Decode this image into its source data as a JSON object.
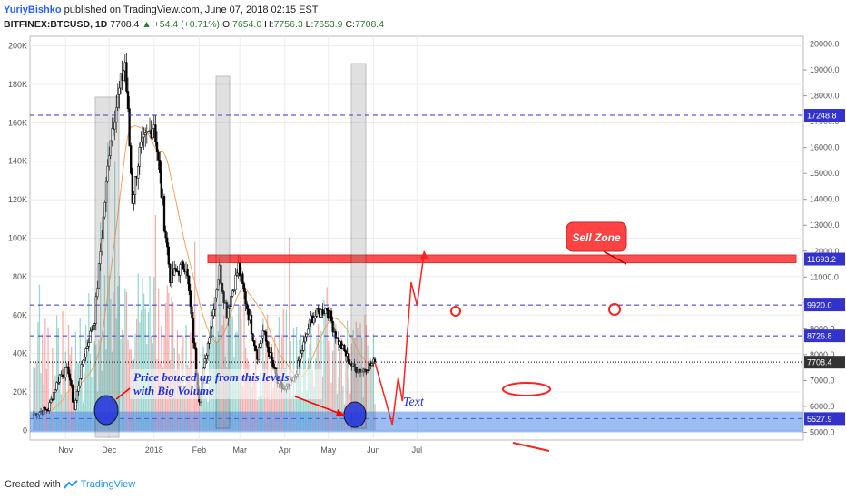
{
  "header": {
    "author": "YuriyBishko",
    "published": "published on TradingView.com, June 07, 2018 02:15 EST",
    "symbol": "BITFINEX:BTCUSD, 1D",
    "last": "7708.4",
    "change": "+54.4 (+0.71%)",
    "open": "7654.0",
    "high": "7756.3",
    "low": "7653.9",
    "close": "7708.4",
    "o_label": "O:",
    "h_label": "H:",
    "l_label": "L:",
    "c_label": "C:"
  },
  "footer": {
    "created_with": "Created with",
    "brand": "TradingView"
  },
  "colors": {
    "up": "#26a69a",
    "down": "#ef5350",
    "level": "#3333cc",
    "annot": "#ff2222",
    "zone": "#4a86e8"
  },
  "chart_data": {
    "type": "candlestick",
    "title": "BITFINEX:BTCUSD, 1D",
    "x_ticks": [
      "Nov",
      "Dec",
      "2018",
      "Feb",
      "Mar",
      "Apr",
      "May",
      "Jun",
      "Jul"
    ],
    "price_ticks": [
      5000,
      6000,
      7000,
      8000,
      9000,
      10000,
      11000,
      12000,
      13000,
      14000,
      15000,
      16000,
      17000,
      18000,
      19000,
      20000
    ],
    "price_tick_labels": [
      "5000.0",
      "6000.0",
      "7000.0",
      "8000.0",
      "9000.0",
      "10000.0",
      "11000.0",
      "12000.0",
      "13000.0",
      "14000.0",
      "15000.0",
      "16000.0",
      "17000.0",
      "18000.0",
      "19000.0",
      "20000.0"
    ],
    "volume_ticks": [
      0,
      20000,
      40000,
      60000,
      80000,
      100000,
      120000,
      140000,
      160000,
      180000,
      200000
    ],
    "volume_tick_labels": [
      "0",
      "20K",
      "40K",
      "60K",
      "80K",
      "100K",
      "120K",
      "140K",
      "160K",
      "180K",
      "200K"
    ],
    "price_range": [
      4700,
      20300
    ],
    "volume_range": [
      -5000,
      205000
    ],
    "levels": [
      {
        "value": 17248.8,
        "label": "17248.8"
      },
      {
        "value": 11693.2,
        "label": "11693.2"
      },
      {
        "value": 9920.0,
        "label": "9920.0"
      },
      {
        "value": 8726.8,
        "label": "8726.8"
      },
      {
        "value": 7708.4,
        "label": "7708.4",
        "current": true
      },
      {
        "value": 5527.9,
        "label": "5527.9"
      }
    ],
    "keypoints": [
      {
        "date": "2017-10-15",
        "price": 5700
      },
      {
        "date": "2017-10-25",
        "price": 5900
      },
      {
        "date": "2017-11-02",
        "price": 7200
      },
      {
        "date": "2017-11-08",
        "price": 7400
      },
      {
        "date": "2017-11-12",
        "price": 5900
      },
      {
        "date": "2017-11-18",
        "price": 7800
      },
      {
        "date": "2017-11-26",
        "price": 9400
      },
      {
        "date": "2017-12-07",
        "price": 16500
      },
      {
        "date": "2017-12-17",
        "price": 19300
      },
      {
        "date": "2017-12-22",
        "price": 14000
      },
      {
        "date": "2017-12-27",
        "price": 15800
      },
      {
        "date": "2018-01-06",
        "price": 17000
      },
      {
        "date": "2018-01-17",
        "price": 11000
      },
      {
        "date": "2018-01-28",
        "price": 11500
      },
      {
        "date": "2018-02-06",
        "price": 6300
      },
      {
        "date": "2018-02-20",
        "price": 11300
      },
      {
        "date": "2018-02-25",
        "price": 9600
      },
      {
        "date": "2018-03-05",
        "price": 11400
      },
      {
        "date": "2018-03-18",
        "price": 8000
      },
      {
        "date": "2018-03-22",
        "price": 8900
      },
      {
        "date": "2018-04-01",
        "price": 6900
      },
      {
        "date": "2018-04-06",
        "price": 6600
      },
      {
        "date": "2018-04-12",
        "price": 7000
      },
      {
        "date": "2018-04-24",
        "price": 9400
      },
      {
        "date": "2018-05-05",
        "price": 9800
      },
      {
        "date": "2018-05-12",
        "price": 8600
      },
      {
        "date": "2018-05-23",
        "price": 7500
      },
      {
        "date": "2018-05-29",
        "price": 7400
      },
      {
        "date": "2018-06-07",
        "price": 7708.4
      }
    ],
    "projection": [
      {
        "date": "2018-06-07",
        "price": 7708.4
      },
      {
        "date": "2018-06-19",
        "price": 5300
      },
      {
        "date": "2018-06-23",
        "price": 7100
      },
      {
        "date": "2018-06-26",
        "price": 6200
      },
      {
        "date": "2018-07-02",
        "price": 10800
      },
      {
        "date": "2018-07-06",
        "price": 9900
      },
      {
        "date": "2018-07-11",
        "price": 12000
      }
    ],
    "annotations": [
      {
        "text": "Price bouced up from this levels\nwith Big Volume"
      },
      {
        "text": "Sell Zone"
      },
      {
        "text": "Text"
      }
    ],
    "grid": true,
    "legend": "none"
  }
}
